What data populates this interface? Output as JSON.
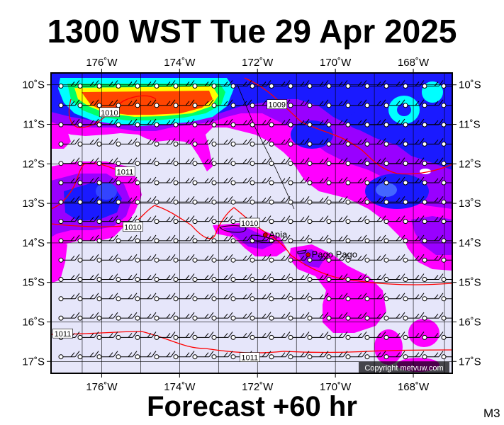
{
  "header": {
    "title": "1300 WST Tue 29 Apr 2025"
  },
  "footer": {
    "forecast": "Forecast +60 hr",
    "model_code": "M3"
  },
  "map": {
    "lon_range": [
      -177.3,
      -167.0
    ],
    "lat_range": [
      -17.3,
      -9.7
    ],
    "lon_ticks": [
      {
        "value": -176,
        "label": "176˚W"
      },
      {
        "value": -174,
        "label": "174˚W"
      },
      {
        "value": -172,
        "label": "172˚W"
      },
      {
        "value": -170,
        "label": "170˚W"
      },
      {
        "value": -168,
        "label": "168˚W"
      }
    ],
    "lat_ticks": [
      {
        "value": -10,
        "label": "10˚S"
      },
      {
        "value": -11,
        "label": "11˚S"
      },
      {
        "value": -12,
        "label": "12˚S"
      },
      {
        "value": -13,
        "label": "13˚S"
      },
      {
        "value": -14,
        "label": "14˚S"
      },
      {
        "value": -15,
        "label": "15˚S"
      },
      {
        "value": -16,
        "label": "16˚S"
      },
      {
        "value": -17,
        "label": "17˚S"
      }
    ],
    "isobar_labels": [
      {
        "text": "1010",
        "lon": -175.8,
        "lat": -10.7
      },
      {
        "text": "1009",
        "lon": -171.5,
        "lat": -10.5
      },
      {
        "text": "1011",
        "lon": -175.4,
        "lat": -12.2
      },
      {
        "text": "1010",
        "lon": -175.2,
        "lat": -13.6
      },
      {
        "text": "1010",
        "lon": -172.2,
        "lat": -13.5
      },
      {
        "text": "1011",
        "lon": -177.0,
        "lat": -16.3
      },
      {
        "text": "1011",
        "lon": -172.2,
        "lat": -16.9
      }
    ],
    "cities": [
      {
        "name": "Apia",
        "lon": -171.8,
        "lat": -13.8
      },
      {
        "name": "Pago Pago",
        "lon": -170.7,
        "lat": -14.3
      }
    ],
    "copyright": "Copyright metvuw.com",
    "colors": {
      "background": "#e6e6fa",
      "precip_light": "#ff00ff",
      "precip_mid": "#9900ff",
      "precip_heavy": "#1a1aff",
      "precip_very_heavy": "#00ffff",
      "precip_extreme": "#ff4500",
      "isobar": "#ff0000"
    }
  }
}
